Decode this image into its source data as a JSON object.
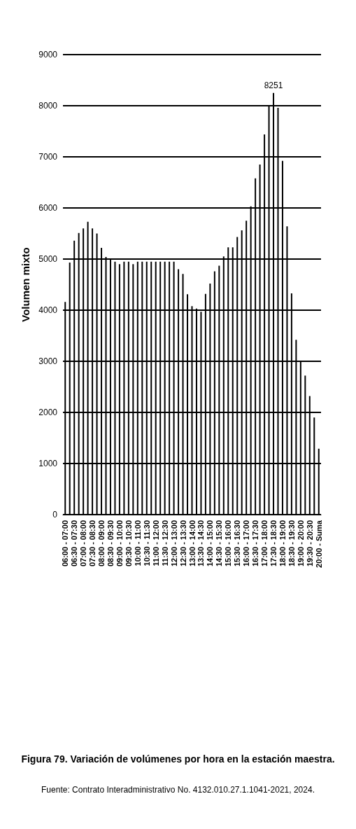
{
  "chart_data": {
    "type": "bar",
    "title": "Figura 79. Variación de volúmenes por hora en la estación maestra.",
    "annotations": [
      "Fuente: Contrato Interadministrativo No. 4132.010.27.1.1041-2021, 2024."
    ],
    "ylabel": "Volumen mixto",
    "categories": [
      "06:00 - 07:00",
      null,
      "06:30 - 07:30",
      null,
      "07:00 - 08:00",
      null,
      "07:30 - 08:30",
      null,
      "08:00 - 09:00",
      null,
      "08:30 - 09:30",
      null,
      "09:00 - 10:00",
      null,
      "09:30 - 10:30",
      null,
      "10:00 - 11:00",
      null,
      "10:30 - 11:30",
      null,
      "11:00 - 12:00",
      null,
      "11:30 - 12:30",
      null,
      "12:00 - 13:00",
      null,
      "12:30 - 13:30",
      null,
      "13:00 - 14:00",
      null,
      "13:30 - 14:30",
      null,
      "14:00 - 15:00",
      null,
      "14:30 - 15:30",
      null,
      "15:00 - 16:00",
      null,
      "15:30 - 16:30",
      null,
      "16:00 - 17:00",
      null,
      "16:30 - 17:30",
      null,
      "17:00 - 18:00",
      null,
      "17:30 - 18:30",
      null,
      "18:00 - 19:00",
      null,
      "18:30 - 19:30",
      null,
      "19:00 - 20:00",
      null,
      "19:30 - 20:30",
      null,
      "20:00 - Suma"
    ],
    "values": [
      4160,
      4930,
      5360,
      5510,
      5600,
      5730,
      5600,
      5500,
      5220,
      5040,
      4990,
      4950,
      4900,
      4950,
      4950,
      4900,
      4950,
      4950,
      4950,
      4950,
      4950,
      4950,
      4950,
      4950,
      4950,
      4800,
      4710,
      4310,
      4080,
      4030,
      3970,
      4320,
      4520,
      4760,
      4870,
      5050,
      5230,
      5230,
      5430,
      5560,
      5750,
      6030,
      6580,
      6850,
      7440,
      7990,
      8251,
      7960,
      6920,
      5640,
      4330,
      3420,
      2990,
      2720,
      2320,
      1900,
      1290
    ],
    "value_labels": [
      null,
      null,
      null,
      null,
      null,
      null,
      null,
      null,
      null,
      null,
      null,
      null,
      null,
      null,
      null,
      null,
      null,
      null,
      null,
      null,
      null,
      null,
      null,
      null,
      null,
      null,
      null,
      null,
      null,
      null,
      null,
      null,
      null,
      null,
      null,
      null,
      null,
      null,
      null,
      null,
      null,
      null,
      null,
      null,
      null,
      null,
      "8251",
      null,
      null,
      null,
      null,
      null,
      null,
      null,
      null,
      null,
      null
    ],
    "color": "#000000",
    "ylim": [
      0,
      9000
    ],
    "yticks": [
      0,
      1000,
      2000,
      3000,
      4000,
      5000,
      6000,
      7000,
      8000,
      9000
    ],
    "grid": true
  }
}
